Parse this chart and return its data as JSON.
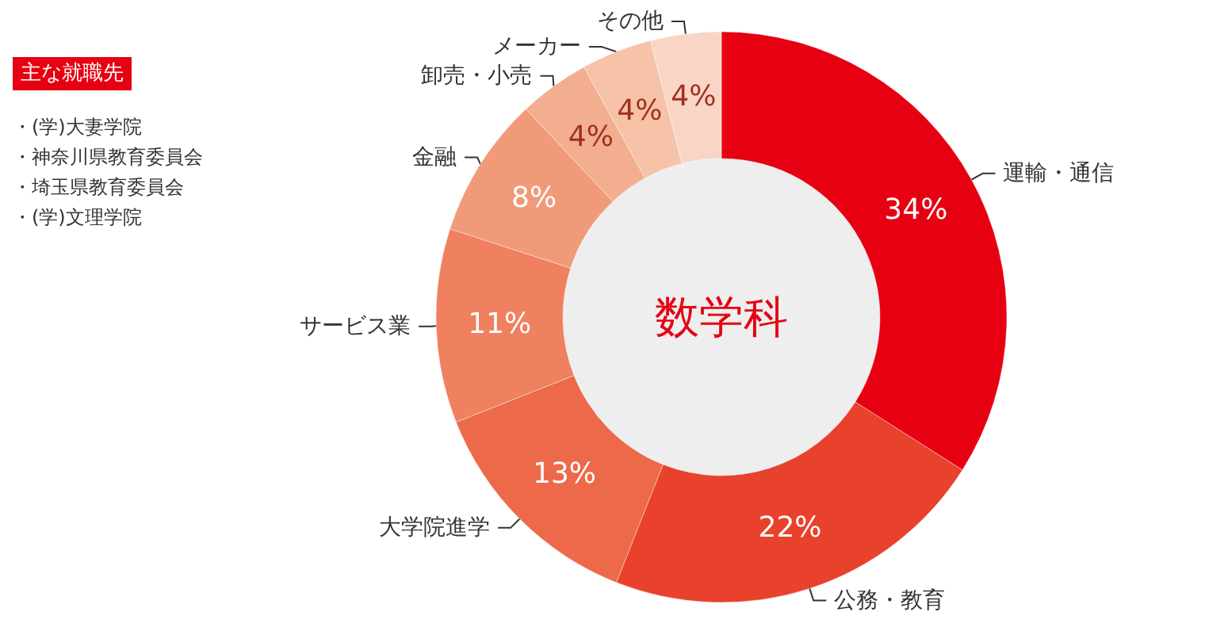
{
  "chart_data": {
    "type": "donut",
    "title": "数学科",
    "categories": [
      "運輸・通信",
      "公務・教育",
      "大学院進学",
      "サービス業",
      "金融",
      "卸売・小売",
      "メーカー",
      "その他"
    ],
    "values": [
      34,
      22,
      13,
      11,
      8,
      4,
      4,
      4
    ],
    "value_labels": [
      "34%",
      "22%",
      "13%",
      "11%",
      "8%",
      "4%",
      "4%",
      "4%"
    ],
    "colors": [
      "#e60012",
      "#e8412c",
      "#ec6a4a",
      "#ef8060",
      "#f19a7a",
      "#f3ae90",
      "#f6c2a8",
      "#f8d5c5"
    ],
    "legend": false,
    "annotations": [
      "主な就職先",
      "・(学)大妻学院",
      "・神奈川県教育委員会",
      "・埼玉県教育委員会",
      "・(学)文理学院"
    ]
  }
}
